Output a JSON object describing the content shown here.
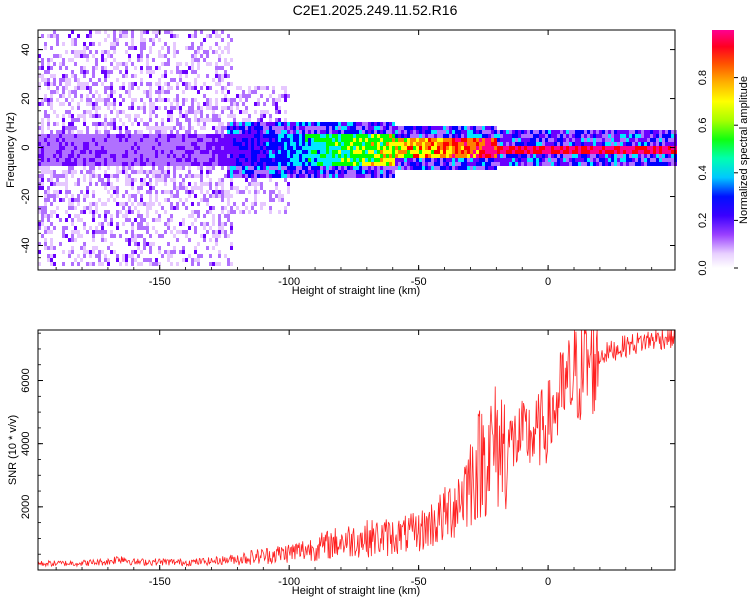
{
  "title": "C2E1.2025.249.11.52.R16",
  "chart_data": [
    {
      "type": "heatmap",
      "xlabel": "Height of straight line (km)",
      "ylabel": "Frequency (Hz)",
      "xlim": [
        -197,
        49
      ],
      "ylim": [
        -50,
        48
      ],
      "xticks": [
        -150,
        -100,
        -50,
        0
      ],
      "yticks": [
        -40,
        -20,
        0,
        20,
        40
      ],
      "colorbar": {
        "label": "Normalized spectral amplitude",
        "range": [
          0,
          1
        ],
        "ticks": [
          "0.0",
          "0.2",
          "0.4",
          "0.6",
          "0.8"
        ]
      },
      "colors": [
        "#ffffff",
        "#e6c8ff",
        "#b070ff",
        "#6a00ff",
        "#0000ff",
        "#00e8ff",
        "#00ff00",
        "#ffff00",
        "#ff8000",
        "#ff0000",
        "#ff0090"
      ]
    },
    {
      "type": "line",
      "xlabel": "Height of straight line (km)",
      "ylabel": "SNR (10 * v/v)",
      "xlim": [
        -197,
        49
      ],
      "ylim": [
        0,
        7600
      ],
      "xticks": [
        -150,
        -100,
        -50,
        0
      ],
      "yticks": [
        2000,
        4000,
        6000
      ],
      "line_color": "#ff2020",
      "series": [
        {
          "x": [
            -197,
            -180,
            -170,
            -165,
            -160,
            -150,
            -140,
            -130,
            -120,
            -110,
            -100,
            -90,
            -80,
            -70,
            -60,
            -50,
            -40,
            -35,
            -30,
            -25,
            -20,
            -15,
            -10,
            -5,
            0,
            5,
            10,
            15,
            20,
            30,
            40,
            49
          ],
          "values": [
            200,
            220,
            260,
            380,
            250,
            260,
            240,
            280,
            350,
            450,
            550,
            700,
            900,
            1000,
            1050,
            1200,
            1700,
            2200,
            2900,
            3600,
            3900,
            4000,
            4200,
            4300,
            4700,
            5500,
            6100,
            6500,
            6800,
            7100,
            7300,
            7400
          ]
        }
      ]
    }
  ]
}
